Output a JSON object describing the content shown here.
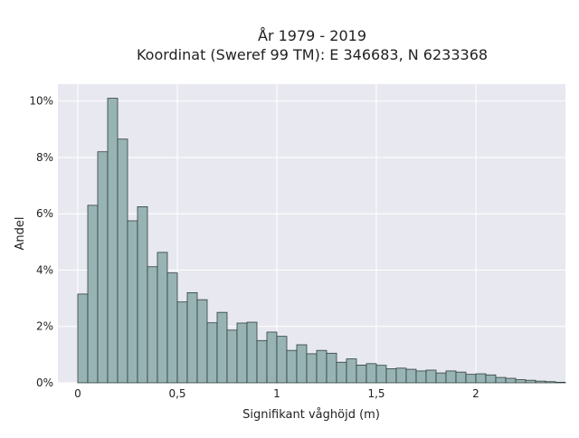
{
  "chart_data": {
    "type": "bar",
    "title_line1": "År 1979 - 2019",
    "title_line2": "Koordinat (Sweref 99 TM): E 346683, N 6233368",
    "xlabel": "Signifikant våghöjd (m)",
    "ylabel": "Andel",
    "xlim": [
      -0.1,
      2.45
    ],
    "ylim": [
      0,
      0.106
    ],
    "bin_start": 0.0,
    "bin_width": 0.05,
    "values": [
      0.0315,
      0.063,
      0.082,
      0.101,
      0.0865,
      0.0575,
      0.0625,
      0.0412,
      0.0463,
      0.039,
      0.0287,
      0.032,
      0.0295,
      0.0213,
      0.025,
      0.0187,
      0.0212,
      0.0215,
      0.015,
      0.018,
      0.0165,
      0.0115,
      0.0135,
      0.0103,
      0.0115,
      0.0105,
      0.0073,
      0.0085,
      0.0063,
      0.0068,
      0.0062,
      0.005,
      0.0052,
      0.0048,
      0.0042,
      0.0045,
      0.0035,
      0.0042,
      0.0038,
      0.003,
      0.0032,
      0.0028,
      0.0019,
      0.0016,
      0.0011,
      0.0009,
      0.0006,
      0.0004,
      0.0002
    ],
    "x_ticks": [
      {
        "value": 0,
        "label": "0"
      },
      {
        "value": 0.5,
        "label": "0,5"
      },
      {
        "value": 1,
        "label": "1"
      },
      {
        "value": 1.5,
        "label": "1,5"
      },
      {
        "value": 2,
        "label": "2"
      }
    ],
    "y_ticks": [
      {
        "value": 0,
        "label": "0%"
      },
      {
        "value": 0.02,
        "label": "2%"
      },
      {
        "value": 0.04,
        "label": "4%"
      },
      {
        "value": 0.06,
        "label": "6%"
      },
      {
        "value": 0.08,
        "label": "8%"
      },
      {
        "value": 0.1,
        "label": "10%"
      }
    ],
    "grid": true,
    "colors": {
      "plot_bg": "#e8e8f0",
      "grid": "#ffffff",
      "bar_fill": "#98b3b3",
      "bar_stroke": "#2f3f3f"
    }
  }
}
